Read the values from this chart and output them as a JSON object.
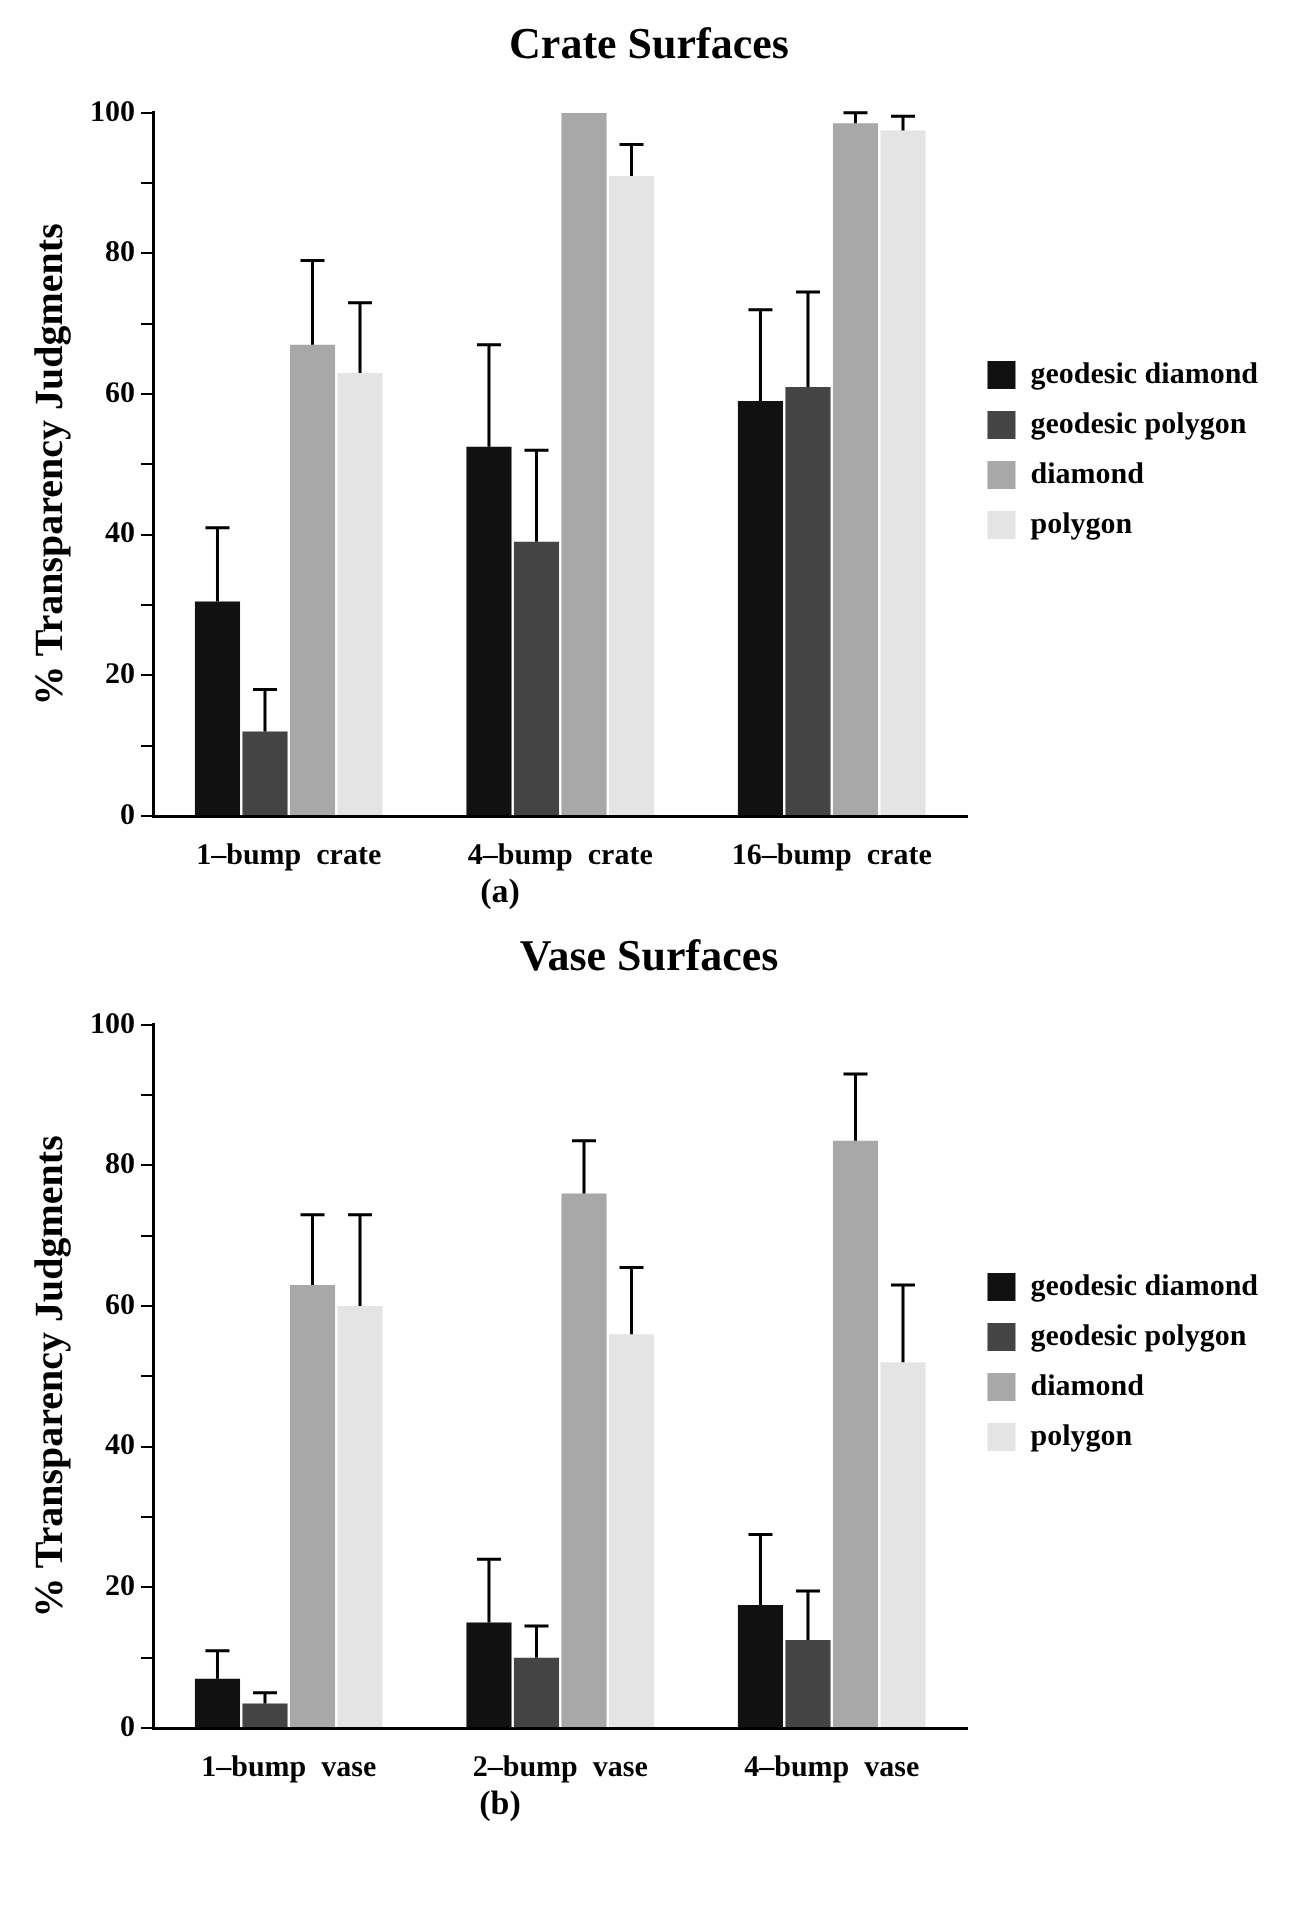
{
  "chart_data": [
    {
      "type": "bar",
      "title": "Crate Surfaces",
      "ylabel": "% Transparency Judgments",
      "categories": [
        "1–bump  crate",
        "4–bump  crate",
        "16–bump  crate"
      ],
      "series": [
        {
          "name": "geodesic diamond",
          "color": "#111111",
          "values": [
            30.5,
            52.5,
            59
          ],
          "errors": [
            [
              30.5,
              41
            ],
            [
              52.5,
              67
            ],
            [
              59,
              72
            ]
          ]
        },
        {
          "name": "geodesic polygon",
          "color": "#444444",
          "values": [
            12,
            39,
            61
          ],
          "errors": [
            [
              12,
              18
            ],
            [
              39,
              52
            ],
            [
              61,
              74.5
            ]
          ]
        },
        {
          "name": "diamond",
          "color": "#a8a8a8",
          "values": [
            67,
            100,
            98.5
          ],
          "errors": [
            [
              67,
              79
            ],
            null,
            [
              98.5,
              100
            ]
          ]
        },
        {
          "name": "polygon",
          "color": "#e4e4e4",
          "values": [
            63,
            91,
            97.5
          ],
          "errors": [
            [
              63,
              73
            ],
            [
              91,
              95.5
            ],
            [
              97.5,
              99.5
            ]
          ]
        }
      ],
      "ylim": [
        0,
        100
      ],
      "yticks": [
        0,
        {
          "value": 10,
          "label": null
        },
        20,
        {
          "value": 30,
          "label": null
        },
        40,
        {
          "value": 50,
          "label": null
        },
        60,
        {
          "value": 70,
          "label": null
        },
        80,
        {
          "value": 90,
          "label": null
        },
        100
      ],
      "grid": false,
      "legend": "right",
      "annotations": [
        "(a)"
      ]
    },
    {
      "type": "bar",
      "title": "Vase Surfaces",
      "ylabel": "% Transparency Judgments",
      "categories": [
        "1–bump  vase",
        "2–bump  vase",
        "4–bump  vase"
      ],
      "series": [
        {
          "name": "geodesic diamond",
          "color": "#111111",
          "values": [
            7,
            15,
            17.5
          ],
          "errors": [
            [
              7,
              11
            ],
            [
              15,
              24
            ],
            [
              17.5,
              27.5
            ]
          ]
        },
        {
          "name": "geodesic polygon",
          "color": "#444444",
          "values": [
            3.5,
            10,
            12.5
          ],
          "errors": [
            [
              3.5,
              5
            ],
            [
              10,
              14.5
            ],
            [
              12.5,
              19.5
            ]
          ]
        },
        {
          "name": "diamond",
          "color": "#a8a8a8",
          "values": [
            63,
            76,
            83.5
          ],
          "errors": [
            [
              63,
              73
            ],
            [
              76,
              83.5
            ],
            [
              83.5,
              93
            ]
          ]
        },
        {
          "name": "polygon",
          "color": "#e4e4e4",
          "values": [
            60,
            56,
            52
          ],
          "errors": [
            [
              60,
              73
            ],
            [
              56,
              65.5
            ],
            [
              52,
              63
            ]
          ]
        }
      ],
      "ylim": [
        0,
        100
      ],
      "yticks": [
        0,
        {
          "value": 10,
          "label": null
        },
        20,
        {
          "value": 30,
          "label": null
        },
        40,
        {
          "value": 50,
          "label": null
        },
        60,
        {
          "value": 70,
          "label": null
        },
        80,
        {
          "value": 90,
          "label": null
        },
        100
      ],
      "grid": false,
      "legend": "right",
      "annotations": [
        "(b)"
      ]
    }
  ]
}
